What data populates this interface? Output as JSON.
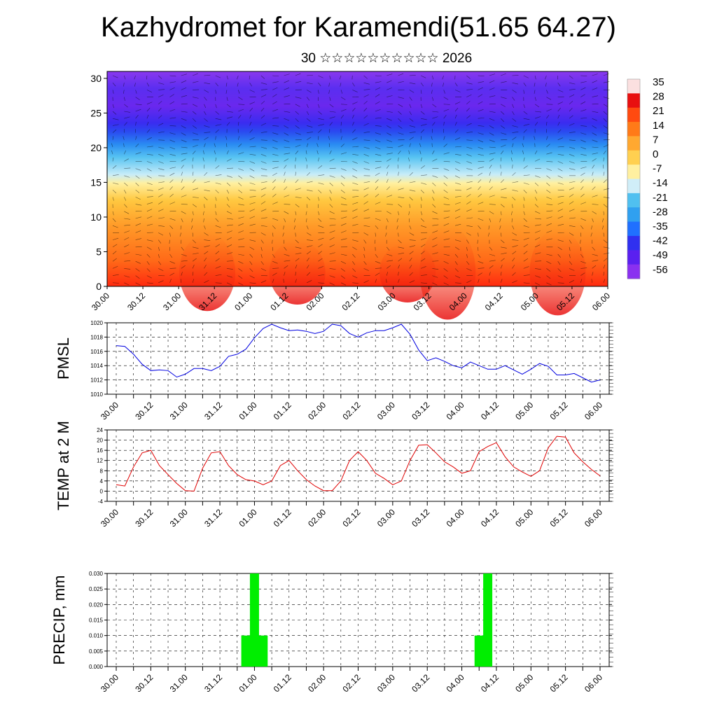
{
  "header": {
    "title": "Kazhydromet for Karamendi(51.65 64.27)",
    "subtitle": "30 ☆☆☆☆☆☆☆☆☆☆ 2026"
  },
  "time_labels": [
    "30.00",
    "30.12",
    "31.00",
    "31.12",
    "01.00",
    "01.12",
    "02.00",
    "02.12",
    "03.00",
    "03.12",
    "04.00",
    "04.12",
    "05.00",
    "05.12",
    "06.00"
  ],
  "chart_data": [
    {
      "type": "heatmap",
      "name": "temperature-wind cross section",
      "title": "",
      "x": [
        "30.00",
        "30.12",
        "31.00",
        "31.12",
        "01.00",
        "01.12",
        "02.00",
        "02.12",
        "03.00",
        "03.12",
        "04.00",
        "04.12",
        "05.00",
        "05.12",
        "06.00"
      ],
      "ylim": [
        0,
        31
      ],
      "yticks": [
        0,
        5,
        10,
        15,
        20,
        25,
        30
      ],
      "colorbar_labels": [
        "35",
        "28",
        "21",
        "14",
        "7",
        "0",
        "-7",
        "-14",
        "-21",
        "-28",
        "-35",
        "-42",
        "-49",
        "-56"
      ],
      "colorbar_colors": [
        "#fbe0e0",
        "#e81010",
        "#ff4a10",
        "#ff7a18",
        "#ffa830",
        "#ffd050",
        "#fff0a0",
        "#d0eef8",
        "#50c0f0",
        "#30a0f0",
        "#2070ff",
        "#3030f0",
        "#5a20f0",
        "#8a30f0"
      ]
    },
    {
      "type": "line",
      "name": "PMSL",
      "ylabel": "PMSL",
      "ylim": [
        1010,
        1020
      ],
      "yticks": [
        1010,
        1012,
        1014,
        1016,
        1018,
        1020
      ],
      "color": "#0000e0",
      "x_start": 0.0,
      "x_step": 0.25,
      "values": [
        1016.8,
        1016.7,
        1015.6,
        1014.2,
        1013.3,
        1013.4,
        1013.3,
        1012.4,
        1012.8,
        1013.6,
        1013.6,
        1013.3,
        1013.9,
        1015.3,
        1015.6,
        1016.3,
        1017.9,
        1019.2,
        1019.8,
        1019.3,
        1018.9,
        1019.0,
        1018.8,
        1018.5,
        1018.8,
        1019.8,
        1019.6,
        1018.5,
        1018.0,
        1018.6,
        1018.9,
        1018.9,
        1019.3,
        1019.8,
        1018.4,
        1016.2,
        1014.7,
        1015.1,
        1014.6,
        1014.0,
        1013.7,
        1014.5,
        1014.0,
        1013.5,
        1013.5,
        1014.0,
        1013.4,
        1012.8,
        1013.5,
        1014.3,
        1013.9,
        1012.7,
        1012.7,
        1012.9,
        1012.3,
        1011.7,
        1012.0
      ]
    },
    {
      "type": "line",
      "name": "TEMP at 2 M",
      "ylabel": "TEMP at 2 M",
      "ylim": [
        -4,
        24
      ],
      "yticks": [
        -4,
        0,
        4,
        8,
        12,
        16,
        20,
        24
      ],
      "color": "#e00000",
      "x_start": 0.0,
      "x_step": 0.25,
      "values": [
        2.5,
        2.0,
        9.5,
        15.0,
        16.0,
        10.0,
        6.5,
        3.0,
        0.2,
        0.0,
        9.0,
        15.0,
        15.5,
        10.0,
        6.5,
        4.5,
        4.0,
        2.5,
        4.0,
        10.0,
        12.0,
        8.0,
        4.5,
        2.0,
        0.2,
        0.2,
        4.0,
        12.0,
        15.5,
        12.0,
        7.0,
        5.0,
        2.5,
        4.0,
        12.0,
        18.0,
        18.2,
        15.0,
        11.5,
        9.5,
        7.0,
        8.0,
        15.5,
        17.5,
        19.0,
        13.5,
        9.5,
        7.5,
        5.8,
        8.0,
        17.0,
        21.5,
        21.2,
        15.0,
        11.5,
        8.5,
        6.0
      ]
    },
    {
      "type": "bar",
      "name": "PRECIP, mm",
      "ylabel": "PRECIP, mm",
      "ylim": [
        0,
        0.03
      ],
      "yticks": [
        0.0,
        0.005,
        0.01,
        0.015,
        0.02,
        0.025,
        0.03
      ],
      "ytick_labels": [
        "0.000",
        "0.005",
        "0.010",
        "0.015",
        "0.020",
        "0.025",
        "0.030"
      ],
      "color": "#00ee00",
      "bars": [
        {
          "t": 3.75,
          "value": 0.01
        },
        {
          "t": 4.0,
          "value": 0.03
        },
        {
          "t": 4.25,
          "value": 0.01
        },
        {
          "t": 10.5,
          "value": 0.01
        },
        {
          "t": 10.75,
          "value": 0.03
        }
      ]
    }
  ]
}
